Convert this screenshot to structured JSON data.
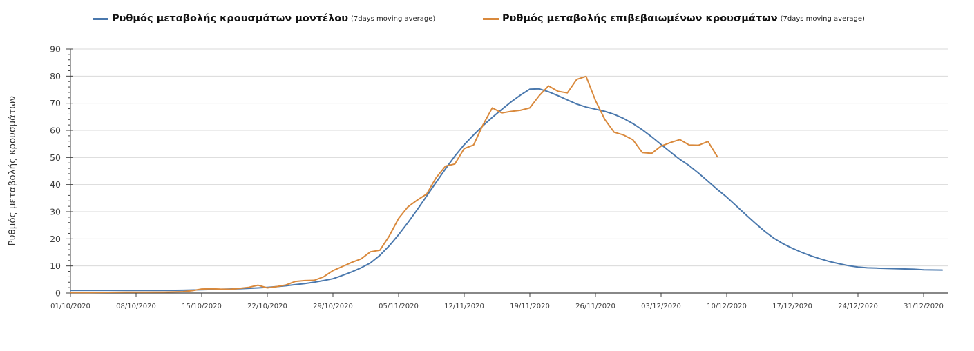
{
  "legend": {
    "items": [
      {
        "label": "Ρυθμός μεταβολής κρουσμάτων μοντέλου",
        "suffix": "(7days moving average)",
        "color": "#4a78ad"
      },
      {
        "label": "Ρυθμός μεταβολής επιβεβαιωμένων κρουσμάτων",
        "suffix": "(7days moving average)",
        "color": "#d9893c"
      }
    ]
  },
  "colors": {
    "grid": "#d9d9d9",
    "axis": "#404040",
    "tick_text": "#404040",
    "background": "#ffffff"
  },
  "chart_data": {
    "type": "line",
    "title": "",
    "xlabel": "",
    "ylabel": "Ρυθμός μεταβολής κρουσμάτων",
    "ylim": [
      0,
      90
    ],
    "y_tick_step": 10,
    "y_minor_tick_step": 2,
    "grid": "horizontal",
    "legend_position": "top",
    "x_tick_labels": [
      "01/10/2020",
      "08/10/2020",
      "15/10/2020",
      "22/10/2020",
      "29/10/2020",
      "05/11/2020",
      "12/11/2020",
      "19/11/2020",
      "26/11/2020",
      "03/12/2020",
      "10/12/2020",
      "17/12/2020",
      "24/12/2020",
      "31/12/2020"
    ],
    "x_tick_days": [
      0,
      7,
      14,
      21,
      28,
      35,
      42,
      49,
      56,
      63,
      70,
      77,
      84,
      91
    ],
    "x_unit": "days since 01/10/2020",
    "series": [
      {
        "name": "Ρυθμός μεταβολής κρουσμάτων μοντέλου (7days moving average)",
        "color": "#4a78ad",
        "x_days": [
          0,
          3,
          6,
          9,
          12,
          14,
          16,
          18,
          20,
          21,
          22,
          23,
          24,
          25,
          26,
          27,
          28,
          29,
          30,
          31,
          32,
          33,
          34,
          35,
          36,
          37,
          38,
          39,
          40,
          41,
          42,
          43,
          44,
          45,
          46,
          47,
          48,
          49,
          50,
          51,
          52,
          53,
          54,
          55,
          56,
          57,
          58,
          59,
          60,
          61,
          62,
          63,
          64,
          65,
          66,
          67,
          68,
          69,
          70,
          71,
          72,
          73,
          74,
          75,
          76,
          77,
          78,
          79,
          80,
          81,
          82,
          83,
          84,
          85,
          86,
          87,
          88,
          89,
          90,
          91,
          93
        ],
        "values": [
          1.0,
          1.0,
          1.0,
          1.0,
          1.05,
          1.2,
          1.4,
          1.6,
          1.9,
          2.1,
          2.4,
          2.7,
          3.1,
          3.5,
          4.0,
          4.6,
          5.3,
          6.5,
          7.8,
          9.3,
          11.1,
          13.9,
          17.4,
          21.5,
          26.0,
          30.8,
          35.8,
          40.8,
          45.8,
          50.5,
          54.7,
          58.3,
          61.7,
          64.8,
          67.7,
          70.5,
          73.0,
          75.2,
          75.3,
          74.2,
          72.8,
          71.2,
          69.7,
          68.6,
          67.8,
          67.0,
          65.9,
          64.4,
          62.5,
          60.2,
          57.6,
          54.8,
          52.0,
          49.3,
          47.0,
          44.2,
          41.2,
          38.2,
          35.4,
          32.2,
          29.0,
          25.9,
          22.9,
          20.3,
          18.2,
          16.5,
          15.0,
          13.7,
          12.6,
          11.6,
          10.8,
          10.1,
          9.6,
          9.3,
          9.2,
          9.1,
          9.0,
          8.9,
          8.8,
          8.6,
          8.5
        ]
      },
      {
        "name": "Ρυθμός μεταβολής επιβεβαιωμένων κρουσμάτων (7days moving average)",
        "color": "#d9893c",
        "x_days": [
          0,
          2,
          4,
          6,
          8,
          10,
          12,
          13,
          14,
          15,
          16,
          17,
          18,
          19,
          20,
          21,
          22,
          23,
          24,
          25,
          26,
          27,
          28,
          29,
          30,
          31,
          32,
          33,
          34,
          35,
          36,
          37,
          38,
          39,
          40,
          41,
          42,
          43,
          44,
          45,
          46,
          47,
          48,
          49,
          50,
          51,
          52,
          53,
          54,
          55,
          56,
          57,
          58,
          59,
          60,
          61,
          62,
          63,
          64,
          65,
          66,
          67,
          68,
          69
        ],
        "values": [
          0.2,
          0.2,
          0.25,
          0.3,
          0.3,
          0.35,
          0.5,
          0.9,
          1.5,
          1.6,
          1.45,
          1.4,
          1.7,
          2.1,
          2.9,
          1.9,
          2.4,
          3.0,
          4.3,
          4.6,
          4.7,
          6.0,
          8.3,
          9.8,
          11.3,
          12.6,
          15.2,
          15.8,
          21.0,
          27.5,
          31.8,
          34.3,
          36.5,
          42.5,
          46.8,
          47.6,
          53.3,
          54.6,
          62.0,
          68.3,
          66.4,
          67.0,
          67.4,
          68.3,
          72.8,
          76.4,
          74.4,
          73.8,
          78.8,
          79.9,
          71.0,
          64.0,
          59.3,
          58.3,
          56.5,
          51.8,
          51.5,
          54.2,
          55.5,
          56.6,
          54.6,
          54.5,
          55.9,
          50.3
        ]
      }
    ]
  }
}
